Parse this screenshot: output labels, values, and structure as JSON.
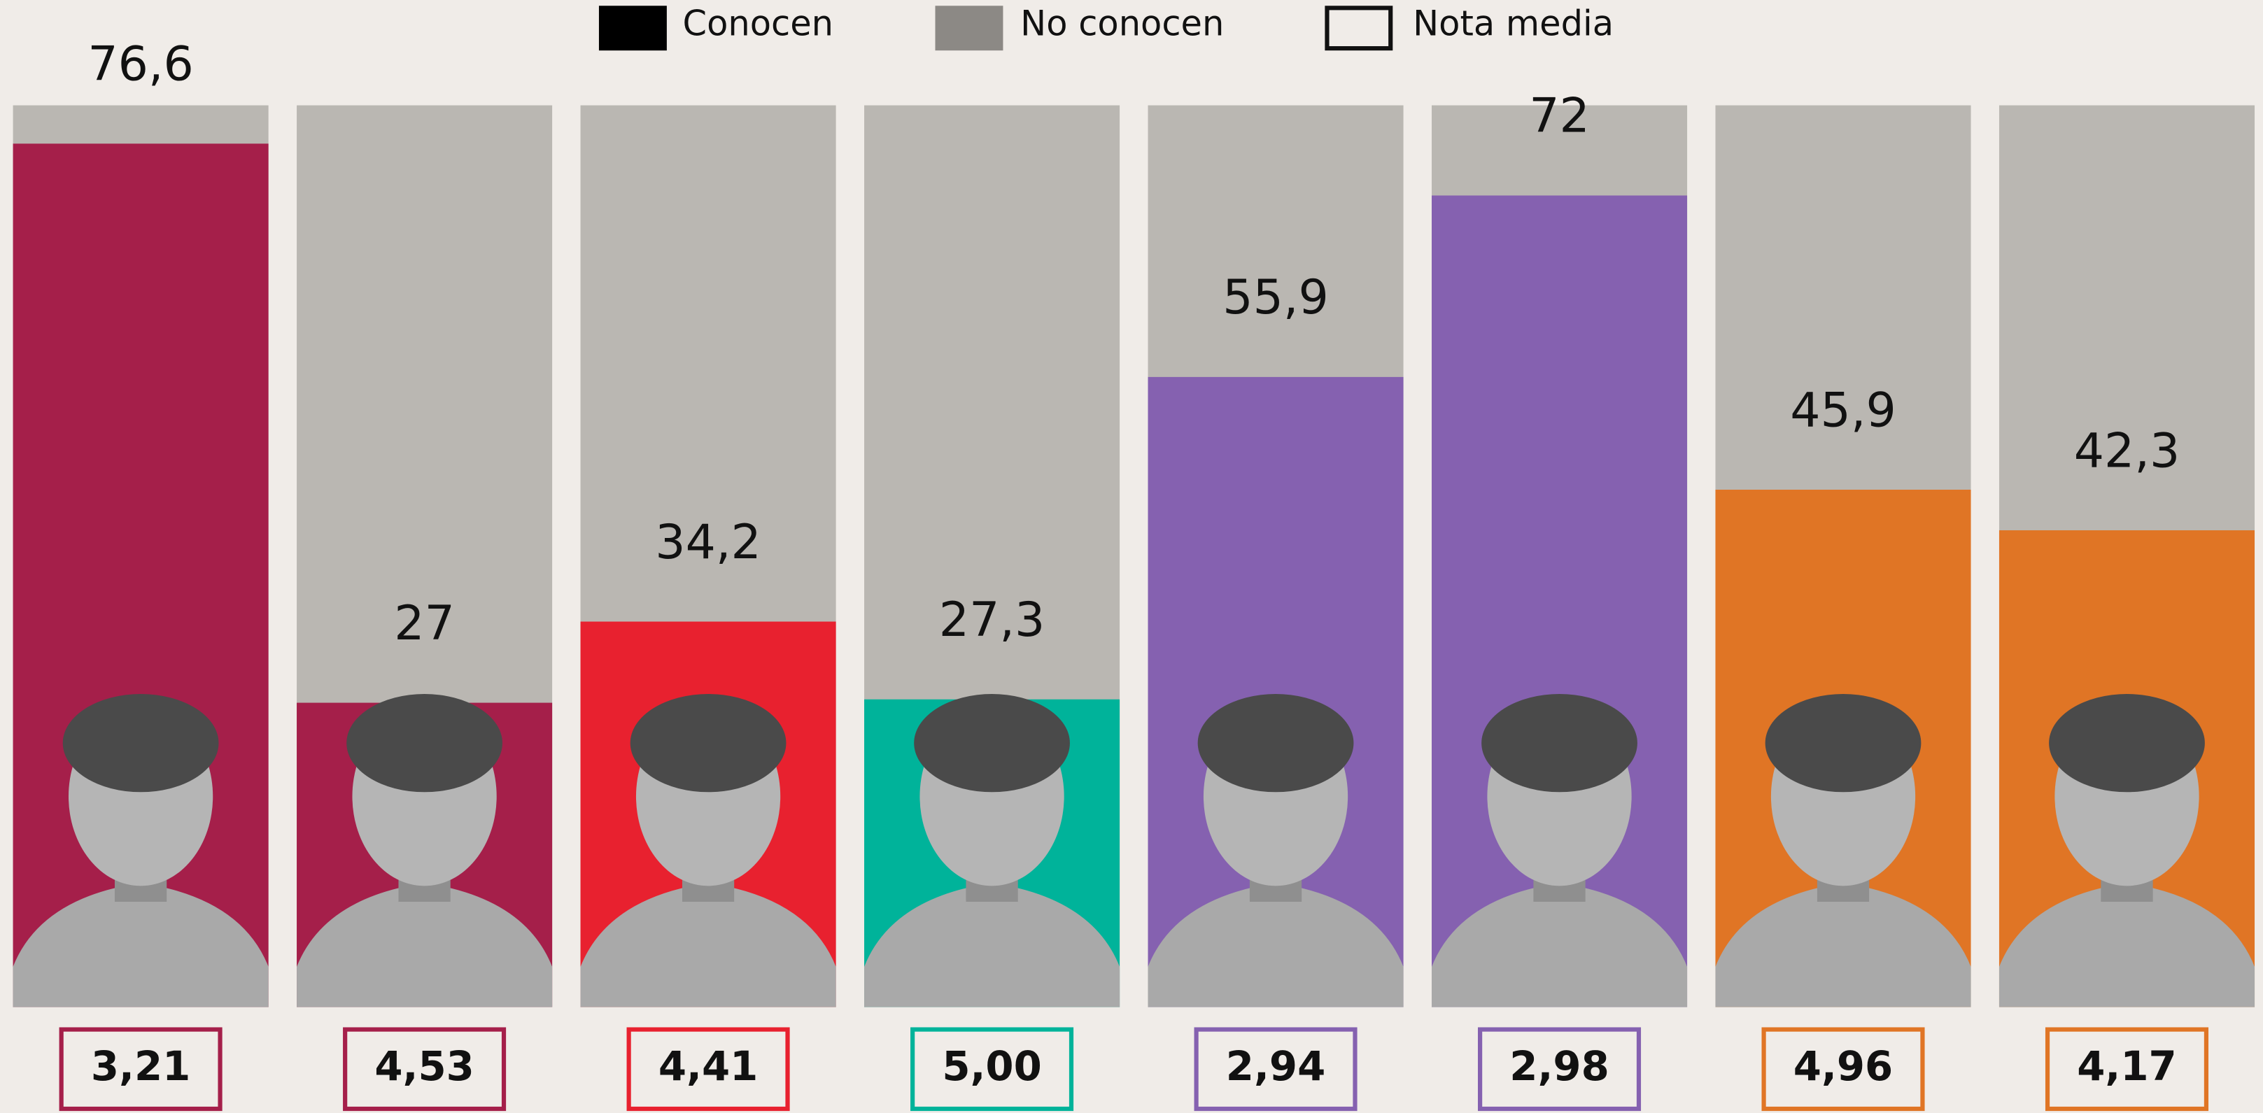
{
  "chart_data": {
    "type": "bar",
    "legend": [
      {
        "label": "Conocen",
        "color": "#000000"
      },
      {
        "label": "No conocen",
        "color": "#8c8985"
      },
      {
        "label": "Nota media"
      }
    ],
    "categories": [
      null,
      null,
      null,
      null,
      null,
      null,
      null,
      null
    ],
    "values": [
      76.6,
      27,
      34.2,
      27.3,
      55.9,
      72,
      45.9,
      42.3
    ],
    "value_labels": [
      "76,6",
      "27",
      "34,2",
      "27,3",
      "55,9",
      "72",
      "45,9",
      "42,3"
    ],
    "colors": [
      "#a51f4a",
      "#a51f4a",
      "#e8212f",
      "#00b39a",
      "#8561b0",
      "#8561b0",
      "#e07525",
      "#e07525"
    ],
    "background_color": "#bab7b2",
    "ylim": [
      0,
      80
    ],
    "nota_media": {
      "values": [
        3.21,
        4.53,
        4.41,
        5.0,
        2.94,
        2.98,
        4.96,
        4.17
      ],
      "value_labels": [
        "3,21",
        "4,53",
        "4,41",
        "5,00",
        "2,94",
        "2,98",
        "4,96",
        "4,17"
      ],
      "colors": [
        "#a51f4a",
        "#a51f4a",
        "#e8212f",
        "#00b39a",
        "#8561b0",
        "#8561b0",
        "#e07525",
        "#e07525"
      ]
    }
  }
}
